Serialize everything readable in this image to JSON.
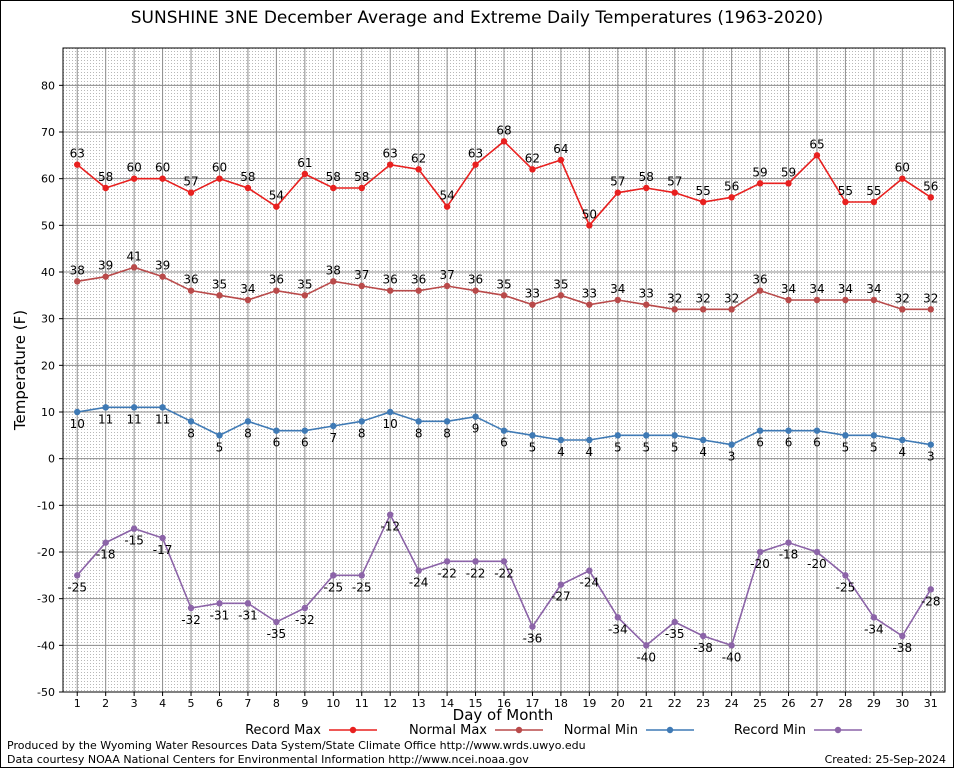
{
  "title": "SUNSHINE 3NE December Average and Extreme Daily Temperatures (1963-2020)",
  "footer": {
    "produced_by": "Produced by the Wyoming Water Resources Data System/State Climate Office http://www.wrds.uwyo.edu",
    "courtesy": "Data courtesy NOAA National Centers for Environmental Information http://www.ncei.noaa.gov",
    "created": "Created: 25-Sep-2024"
  },
  "chart_data": {
    "type": "line",
    "title": "SUNSHINE 3NE December Average and Extreme Daily Temperatures (1963-2020)",
    "xlabel": "Day of Month",
    "ylabel": "Temperature (F)",
    "x": [
      1,
      2,
      3,
      4,
      5,
      6,
      7,
      8,
      9,
      10,
      11,
      12,
      13,
      14,
      15,
      16,
      17,
      18,
      19,
      20,
      21,
      22,
      23,
      24,
      25,
      26,
      27,
      28,
      29,
      30,
      31
    ],
    "xlim": [
      0.5,
      31.5
    ],
    "ylim": [
      -50,
      88
    ],
    "yticks": [
      -50,
      -40,
      -30,
      -20,
      -10,
      0,
      10,
      20,
      30,
      40,
      50,
      60,
      70,
      80
    ],
    "grid": true,
    "legend_position": "bottom",
    "series": [
      {
        "name": "Record Max",
        "color": "#e8201f",
        "label_position": "above",
        "values": [
          63,
          58,
          60,
          60,
          57,
          60,
          58,
          54,
          61,
          58,
          58,
          63,
          62,
          54,
          63,
          68,
          62,
          64,
          50,
          57,
          58,
          57,
          55,
          56,
          59,
          59,
          65,
          55,
          55,
          60,
          56
        ]
      },
      {
        "name": "Normal Max",
        "color": "#b94a4a",
        "label_position": "above",
        "values": [
          38,
          39,
          41,
          39,
          36,
          35,
          34,
          36,
          35,
          38,
          37,
          36,
          36,
          37,
          36,
          35,
          33,
          35,
          33,
          34,
          33,
          32,
          32,
          32,
          36,
          34,
          34,
          34,
          34,
          32,
          32
        ]
      },
      {
        "name": "Normal Min",
        "color": "#3f7ab5",
        "label_position": "below",
        "values": [
          10,
          11,
          11,
          11,
          8,
          5,
          8,
          6,
          6,
          7,
          8,
          10,
          8,
          8,
          9,
          6,
          5,
          4,
          4,
          5,
          5,
          5,
          4,
          3,
          6,
          6,
          6,
          5,
          5,
          4,
          3
        ]
      },
      {
        "name": "Record Min",
        "color": "#8c64a8",
        "label_position": "below",
        "values": [
          -25,
          -18,
          -15,
          -17,
          -32,
          -31,
          -31,
          -35,
          -32,
          -25,
          -25,
          -12,
          -24,
          -22,
          -22,
          -22,
          -36,
          -27,
          -24,
          -34,
          -40,
          -35,
          -38,
          -40,
          -20,
          -18,
          -20,
          -25,
          -34,
          -38,
          -28
        ]
      }
    ]
  }
}
